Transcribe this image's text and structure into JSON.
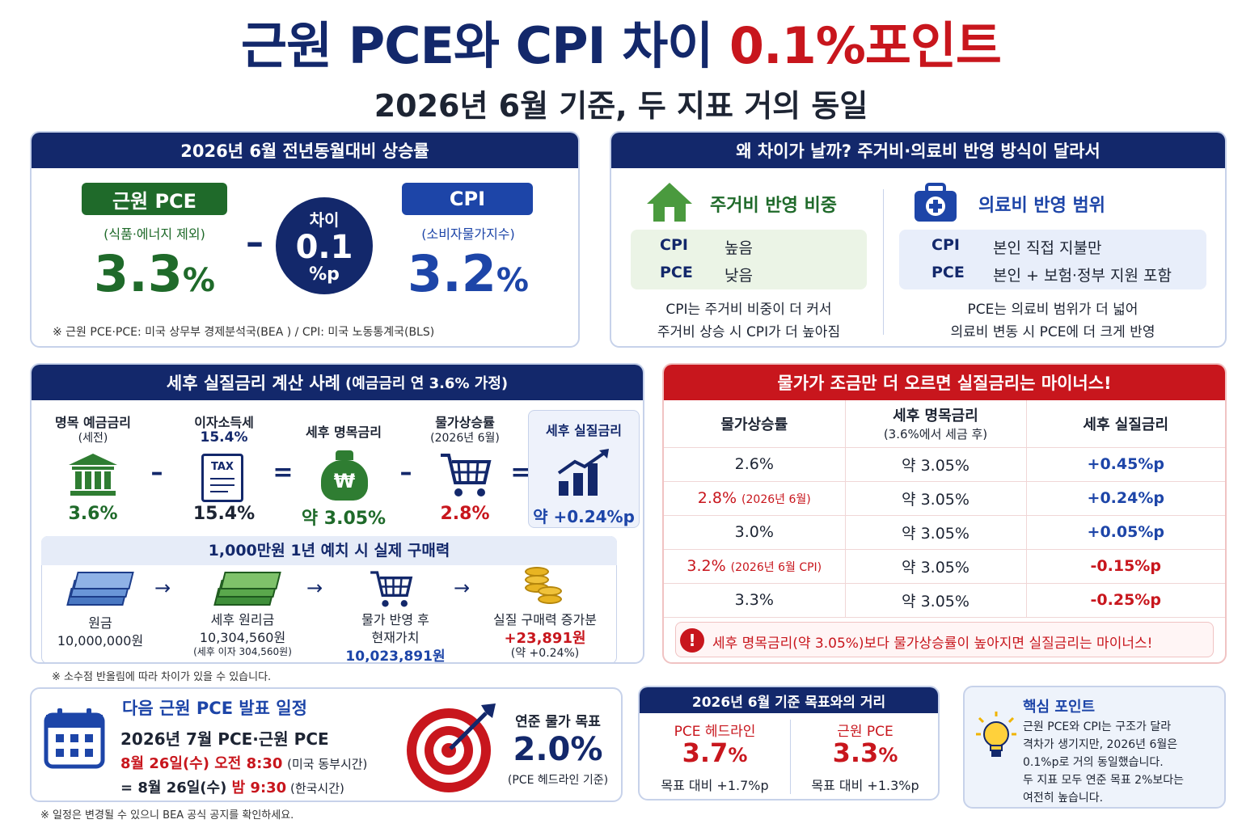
{
  "title": {
    "main": "근원 PCE와 CPI 차이",
    "highlight": "0.1%포인트",
    "sub": "2026년 6월 기준, 두 지표 거의 동일"
  },
  "yoy": {
    "header": "2026년 6월 전년동월대비 상승률",
    "pce_label": "근원 PCE",
    "pce_sub": "(식품·에너지 제외)",
    "pce_value": "3.3",
    "pce_unit": "%",
    "minus": "–",
    "diff_label": "차이",
    "diff_value": "0.1",
    "diff_unit": "%p",
    "cpi_label": "CPI",
    "cpi_sub": "(소비자물가지수)",
    "cpi_value": "3.2",
    "cpi_unit": "%",
    "note": "※ 근원 PCE·PCE: 미국 상무부 경제분석국(BEA ) / CPI: 미국 노동통계국(BLS)"
  },
  "why": {
    "header": "왜 차이가 날까? 주거비·의료비 반영 방식이 달라서",
    "housing": {
      "title": "주거비 반영 비중",
      "r1k": "CPI",
      "r1v": "높음",
      "r2k": "PCE",
      "r2v": "낮음",
      "desc1": "CPI는 주거비 비중이 더 커서",
      "desc2": "주거비 상승 시 CPI가 더 높아짐"
    },
    "medical": {
      "title": "의료비 반영 범위",
      "r1k": "CPI",
      "r1v": "본인 직접 지불만",
      "r2k": "PCE",
      "r2v": "본인 + 보험·정부 지원 포함",
      "desc1": "PCE는 의료비 범위가 더 넓어",
      "desc2": "의료비 변동 시 PCE에 더 크게 반영"
    }
  },
  "calc": {
    "header": "세후 실질금리 계산 사례",
    "header_small": "(예금금리 연 3.6% 가정)",
    "s1_label": "명목 예금금리",
    "s1_sub": "(세전)",
    "s1_value": "3.6%",
    "s2_label": "이자소득세",
    "s2_sub": "15.4%",
    "s2_value": "15.4%",
    "tax_text": "TAX",
    "s3_label": "세후 명목금리",
    "s3_value": "약 3.05%",
    "won": "₩",
    "s4_label": "물가상승률",
    "s4_sub": "(2026년 6월)",
    "s4_value": "2.8%",
    "s5_label": "세후 실질금리",
    "s5_value": "약 +0.24%p",
    "op_minus": "–",
    "op_eq": "=",
    "power": {
      "header": "1,000만원 1년 예치 시 실제 구매력",
      "arrow": "→",
      "p1_label": "원금",
      "p1_value": "10,000,000원",
      "p2_label": "세후 원리금",
      "p2_value": "10,304,560원",
      "p2_sub": "(세후 이자 304,560원)",
      "p3_label1": "물가 반영 후",
      "p3_label2": "현재가치",
      "p3_value": "10,023,891원",
      "p4_label": "실질 구매력 증가분",
      "p4_value": "+23,891원",
      "p4_sub": "(약 +0.24%)"
    },
    "note": "※ 소수점 반올림에 따라 차이가 있을 수 있습니다."
  },
  "negative": {
    "header": "물가가 조금만 더 오르면 실질금리는 마이너스!",
    "col1": "물가상승률",
    "col2a": "세후 명목금리",
    "col2b": "(3.6%에서 세금  후)",
    "col3": "세후 실질금리",
    "rows": [
      {
        "infl": "2.6%",
        "infl_note": "",
        "nom": "약 3.05%",
        "real": "+0.45%p",
        "infl_red": false,
        "real_red": false
      },
      {
        "infl": "2.8%",
        "infl_note": "(2026년 6월)",
        "nom": "약 3.05%",
        "real": "+0.24%p",
        "infl_red": true,
        "real_red": false
      },
      {
        "infl": "3.0%",
        "infl_note": "",
        "nom": "약 3.05%",
        "real": "+0.05%p",
        "infl_red": false,
        "real_red": false
      },
      {
        "infl": "3.2%",
        "infl_note": "(2026년 6월 CPI)",
        "nom": "약 3.05%",
        "real": "-0.15%p",
        "infl_red": true,
        "real_red": true
      },
      {
        "infl": "3.3%",
        "infl_note": "",
        "nom": "약 3.05%",
        "real": "-0.25%p",
        "infl_red": false,
        "real_red": true
      }
    ],
    "warning_icon": "!",
    "warning": "세후 명목금리(약 3.05%)보다 물가상승률이 높아지면 실질금리는 마이너스!"
  },
  "schedule": {
    "title": "다음 근원 PCE 발표 일정",
    "line1": "2026년 7월 PCE·근원 PCE",
    "line2_red": "8월 26일(수) 오전 8:30",
    "line2_note": "(미국 동부시간)",
    "line3_pre": "= 8월 26일(수) ",
    "line3_red": "밤 9:30",
    "line3_note": " (한국시간)",
    "target_label": "연준 물가 목표",
    "target_value": "2.0%",
    "target_sub": "(PCE 헤드라인 기준)",
    "note": "※ 일정은 변경될 수 있으니 BEA 공식 공지를 확인하세요."
  },
  "distance": {
    "header": "2026년 6월 기준 목표와의 거리",
    "a_label": "PCE 헤드라인",
    "a_value": "3.7",
    "a_unit": "%",
    "a_sub": "목표 대비 +1.7%p",
    "b_label": "근원 PCE",
    "b_value": "3.3",
    "b_unit": "%",
    "b_sub": "목표 대비 +1.3%p"
  },
  "key": {
    "title": "핵심 포인트",
    "lines": [
      "근원 PCE와 CPI는 구조가 달라",
      "격차가 생기지만, 2026년 6월은",
      "0.1%p로 거의 동일했습니다.",
      "두 지표 모두 연준 목표 2%보다는",
      "여전히 높습니다."
    ]
  },
  "colors": {
    "navy": "#13286b",
    "red": "#c8161d",
    "green": "#1f6a2a",
    "blue": "#1d45a8"
  }
}
